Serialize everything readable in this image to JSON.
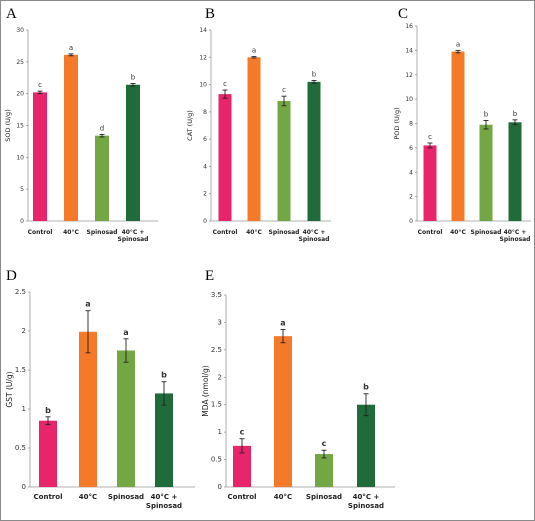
{
  "chart_data": [
    {
      "panel": "A",
      "type": "bar",
      "ylabel": "SOD (U/g)",
      "categories": [
        "Control",
        "40°C",
        "Spinosad",
        "40°C + Spinosad"
      ],
      "values": [
        20.2,
        26.1,
        13.4,
        21.4
      ],
      "errors": [
        0.2,
        0.15,
        0.2,
        0.2
      ],
      "letters": [
        "c",
        "a",
        "d",
        "b"
      ],
      "ylim": [
        0,
        30
      ],
      "yticks": [
        0,
        5,
        10,
        15,
        20,
        25,
        30
      ],
      "colors": [
        "#e8246a",
        "#f47a2a",
        "#72a743",
        "#1f6b3a"
      ]
    },
    {
      "panel": "B",
      "type": "bar",
      "ylabel": "CAT (U/g)",
      "categories": [
        "Control",
        "40°C",
        "Spinosad",
        "40°C + Spinosad"
      ],
      "values": [
        9.3,
        12.0,
        8.8,
        10.2
      ],
      "errors": [
        0.3,
        0.05,
        0.35,
        0.1
      ],
      "letters": [
        "c",
        "a",
        "c",
        "b"
      ],
      "ylim": [
        0,
        14
      ],
      "yticks": [
        0,
        2,
        4,
        6,
        8,
        10,
        12,
        14
      ],
      "colors": [
        "#e8246a",
        "#f47a2a",
        "#72a743",
        "#1f6b3a"
      ]
    },
    {
      "panel": "C",
      "type": "bar",
      "ylabel": "POD (U/g)",
      "categories": [
        "Control",
        "40°C",
        "Spinosad",
        "40°C + Spinosad"
      ],
      "values": [
        6.2,
        13.9,
        7.9,
        8.1
      ],
      "errors": [
        0.2,
        0.1,
        0.35,
        0.2
      ],
      "letters": [
        "c",
        "a",
        "b",
        "b"
      ],
      "ylim": [
        0,
        16
      ],
      "yticks": [
        0,
        2,
        4,
        6,
        8,
        10,
        12,
        14,
        16
      ],
      "colors": [
        "#e8246a",
        "#f47a2a",
        "#72a743",
        "#1f6b3a"
      ]
    },
    {
      "panel": "D",
      "type": "bar",
      "ylabel": "GST (U/g)",
      "categories": [
        "Control",
        "40°C",
        "Spinosad",
        "40°C + Spinosad"
      ],
      "values": [
        0.85,
        1.99,
        1.75,
        1.2
      ],
      "errors": [
        0.05,
        0.27,
        0.15,
        0.15
      ],
      "letters": [
        "b",
        "a",
        "a",
        "b"
      ],
      "ylim": [
        0,
        2.5
      ],
      "yticks": [
        0,
        0.5,
        1,
        1.5,
        2,
        2.5
      ],
      "colors": [
        "#e8246a",
        "#f47a2a",
        "#72a743",
        "#1f6b3a"
      ]
    },
    {
      "panel": "E",
      "type": "bar",
      "ylabel": "MDA (nmol/g)",
      "categories": [
        "Control",
        "40°C",
        "Spinosad",
        "40°C + Spinosad"
      ],
      "values": [
        0.75,
        2.75,
        0.6,
        1.5
      ],
      "errors": [
        0.13,
        0.12,
        0.07,
        0.2
      ],
      "letters": [
        "c",
        "a",
        "c",
        "b"
      ],
      "ylim": [
        0,
        3.5
      ],
      "yticks": [
        0,
        0.5,
        1,
        1.5,
        2,
        2.5,
        3,
        3.5
      ],
      "colors": [
        "#e8246a",
        "#f47a2a",
        "#72a743",
        "#1f6b3a"
      ]
    }
  ]
}
